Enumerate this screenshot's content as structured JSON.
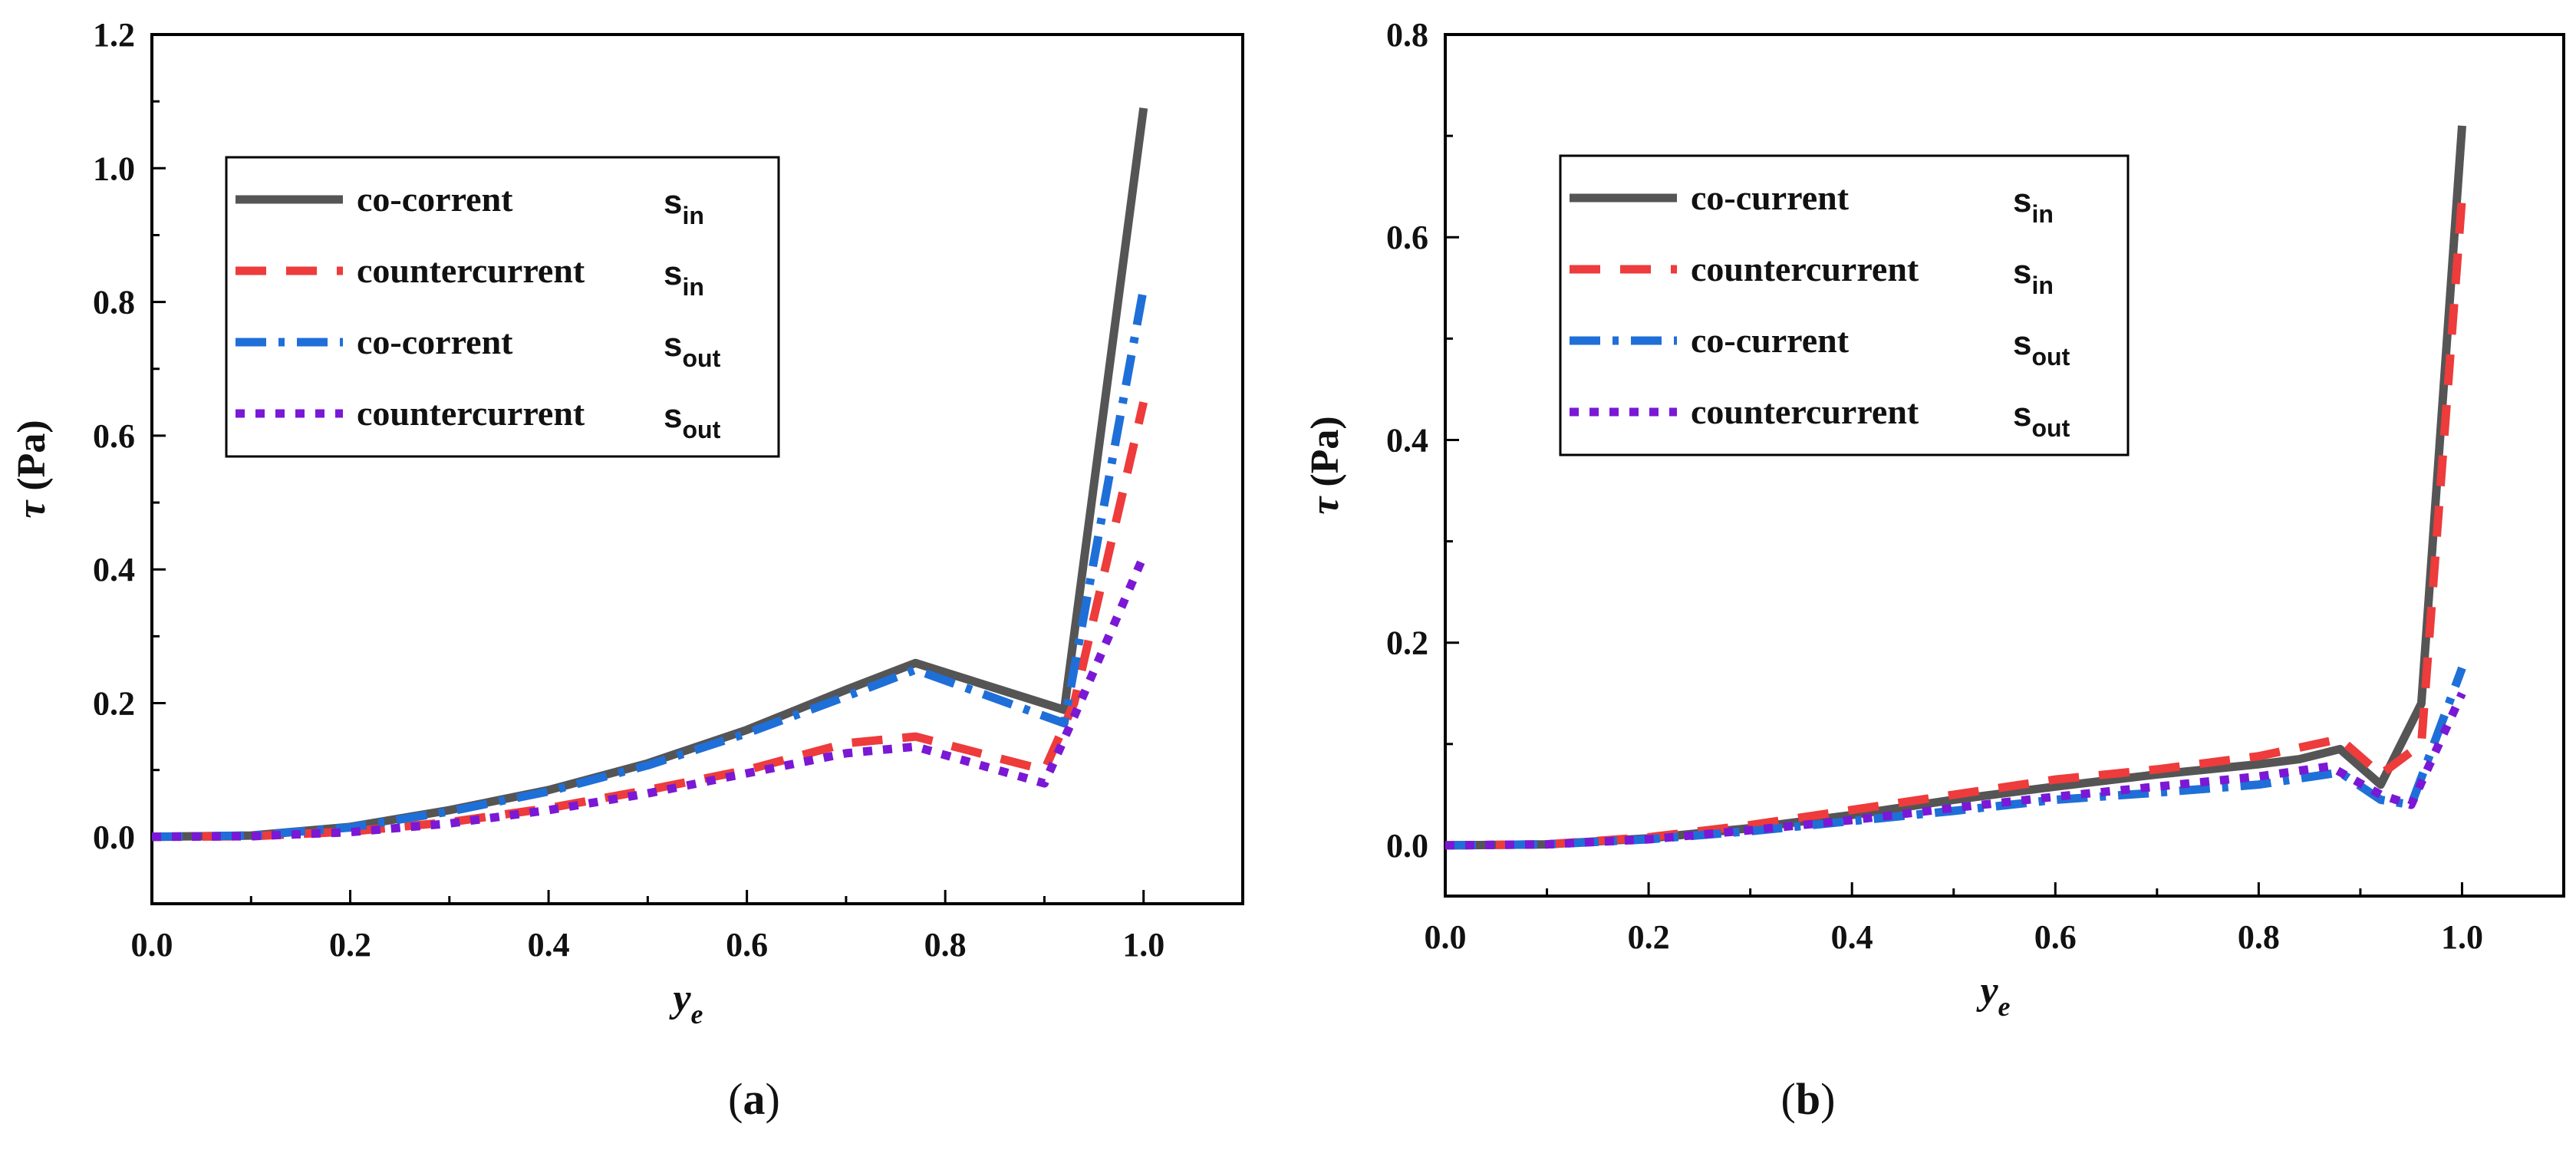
{
  "chart_data": [
    {
      "id": "a",
      "type": "line",
      "panel_label": "(a)",
      "xlabel": "y",
      "xlabel_sub": "e",
      "ylabel": "τ (Pa)",
      "xlim": [
        0.0,
        1.1
      ],
      "ylim": [
        -0.1,
        1.2
      ],
      "xticks": [
        0.0,
        0.2,
        0.4,
        0.6,
        0.8,
        1.0
      ],
      "xtick_labels": [
        "0.0",
        "0.2",
        "0.4",
        "0.6",
        "0.8",
        "1.0"
      ],
      "yticks": [
        0.0,
        0.2,
        0.4,
        0.6,
        0.8,
        1.0,
        1.2
      ],
      "ytick_labels": [
        "0.0",
        "0.2",
        "0.4",
        "0.6",
        "0.8",
        "1.0",
        "1.2"
      ],
      "legend_position": "upper-left",
      "series": [
        {
          "name": "co-corrent",
          "sub_main": "s",
          "sub": "in",
          "color": "#555555",
          "style": "solid",
          "x": [
            0.0,
            0.1,
            0.2,
            0.3,
            0.4,
            0.5,
            0.6,
            0.7,
            0.77,
            0.92,
            1.0
          ],
          "y": [
            0.0,
            0.002,
            0.015,
            0.04,
            0.07,
            0.11,
            0.16,
            0.22,
            0.26,
            0.19,
            1.09
          ]
        },
        {
          "name": "countercurrent",
          "sub_main": "s",
          "sub": "in",
          "color": "#ee3b3b",
          "style": "dash",
          "x": [
            0.0,
            0.1,
            0.2,
            0.3,
            0.4,
            0.5,
            0.6,
            0.7,
            0.77,
            0.9,
            0.93,
            1.0
          ],
          "y": [
            0.0,
            0.001,
            0.008,
            0.022,
            0.043,
            0.07,
            0.1,
            0.14,
            0.15,
            0.1,
            0.2,
            0.65
          ]
        },
        {
          "name": "co-corrent",
          "sub_main": "s",
          "sub": "out",
          "color": "#1f6fd8",
          "style": "dashdot",
          "x": [
            0.0,
            0.1,
            0.2,
            0.3,
            0.4,
            0.5,
            0.6,
            0.7,
            0.77,
            0.92,
            1.0
          ],
          "y": [
            0.0,
            0.002,
            0.014,
            0.038,
            0.068,
            0.107,
            0.155,
            0.21,
            0.25,
            0.17,
            0.82
          ]
        },
        {
          "name": "countercurrent",
          "sub_main": "s",
          "sub": "out",
          "color": "#7a18d6",
          "style": "dot",
          "x": [
            0.0,
            0.1,
            0.2,
            0.3,
            0.4,
            0.5,
            0.6,
            0.7,
            0.77,
            0.9,
            0.93,
            1.0
          ],
          "y": [
            0.0,
            0.001,
            0.007,
            0.02,
            0.04,
            0.065,
            0.095,
            0.125,
            0.135,
            0.08,
            0.18,
            0.42
          ]
        }
      ]
    },
    {
      "id": "b",
      "type": "line",
      "panel_label": "(b)",
      "xlabel": "y",
      "xlabel_sub": "e",
      "ylabel": "τ (Pa)",
      "xlim": [
        0.0,
        1.1
      ],
      "ylim": [
        -0.05,
        0.8
      ],
      "xticks": [
        0.0,
        0.2,
        0.4,
        0.6,
        0.8,
        1.0
      ],
      "xtick_labels": [
        "0.0",
        "0.2",
        "0.4",
        "0.6",
        "0.8",
        "1.0"
      ],
      "yticks": [
        0.0,
        0.2,
        0.4,
        0.6,
        0.8
      ],
      "ytick_labels": [
        "0.0",
        "0.2",
        "0.4",
        "0.6",
        "0.8"
      ],
      "legend_position": "upper-left",
      "series": [
        {
          "name": "co-current",
          "sub_main": "s",
          "sub": "in",
          "color": "#555555",
          "style": "solid",
          "x": [
            0.0,
            0.1,
            0.2,
            0.3,
            0.4,
            0.5,
            0.6,
            0.7,
            0.8,
            0.84,
            0.88,
            0.92,
            0.96,
            1.0
          ],
          "y": [
            0.0,
            0.001,
            0.007,
            0.017,
            0.03,
            0.045,
            0.058,
            0.07,
            0.08,
            0.085,
            0.095,
            0.06,
            0.14,
            0.71
          ]
        },
        {
          "name": "countercurrent",
          "sub_main": "s",
          "sub": "in",
          "color": "#ee3b3b",
          "style": "dash",
          "x": [
            0.0,
            0.1,
            0.2,
            0.3,
            0.4,
            0.5,
            0.6,
            0.7,
            0.8,
            0.88,
            0.92,
            0.96,
            1.0
          ],
          "y": [
            0.0,
            0.001,
            0.008,
            0.02,
            0.035,
            0.05,
            0.065,
            0.075,
            0.088,
            0.105,
            0.07,
            0.1,
            0.64
          ]
        },
        {
          "name": "co-current",
          "sub_main": "s",
          "sub": "out",
          "color": "#1f6fd8",
          "style": "dashdot",
          "x": [
            0.0,
            0.1,
            0.2,
            0.3,
            0.4,
            0.5,
            0.6,
            0.7,
            0.8,
            0.88,
            0.92,
            0.95,
            1.0
          ],
          "y": [
            0.0,
            0.001,
            0.006,
            0.014,
            0.024,
            0.034,
            0.045,
            0.052,
            0.06,
            0.072,
            0.045,
            0.04,
            0.175
          ]
        },
        {
          "name": "countercurrent",
          "sub_main": "s",
          "sub": "out",
          "color": "#7a18d6",
          "style": "dot",
          "x": [
            0.0,
            0.1,
            0.2,
            0.3,
            0.4,
            0.5,
            0.6,
            0.7,
            0.8,
            0.87,
            0.92,
            0.95,
            1.0
          ],
          "y": [
            0.0,
            0.001,
            0.006,
            0.015,
            0.025,
            0.037,
            0.048,
            0.058,
            0.068,
            0.078,
            0.05,
            0.04,
            0.15
          ]
        }
      ]
    }
  ]
}
